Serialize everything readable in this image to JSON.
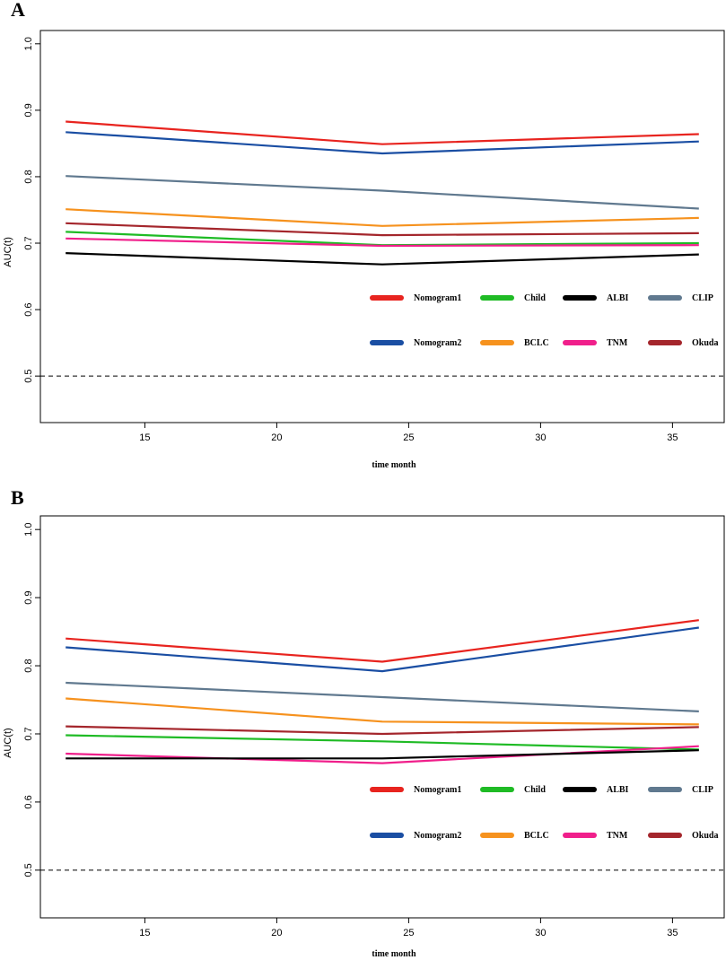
{
  "chart_data": [
    {
      "panel_label": "A",
      "type": "line",
      "xlabel": "time month",
      "ylabel": "AUC(t)",
      "xlim": [
        12,
        36
      ],
      "ylim": [
        0.43,
        1.02
      ],
      "x_ticks": [
        15,
        20,
        25,
        30,
        35
      ],
      "y_ticks": [
        0.5,
        0.6,
        0.7,
        0.8,
        0.9,
        1.0
      ],
      "y_tick_labels": [
        "0.5",
        "0.6",
        "0.7",
        "0.8",
        "0.9",
        "1.0"
      ],
      "reference_line": 0.5,
      "x": [
        12,
        24,
        36
      ],
      "series": [
        {
          "name": "Nomogram1",
          "color": "#e8241f",
          "values": [
            0.883,
            0.849,
            0.864
          ]
        },
        {
          "name": "Nomogram2",
          "color": "#1a4ea3",
          "values": [
            0.867,
            0.835,
            0.853
          ]
        },
        {
          "name": "CLIP",
          "color": "#60798f",
          "values": [
            0.801,
            0.779,
            0.752
          ]
        },
        {
          "name": "BCLC",
          "color": "#f6921e",
          "values": [
            0.751,
            0.726,
            0.738
          ]
        },
        {
          "name": "Okuda",
          "color": "#a4262c",
          "values": [
            0.73,
            0.712,
            0.715
          ]
        },
        {
          "name": "Child",
          "color": "#1fbb25",
          "values": [
            0.717,
            0.697,
            0.7
          ]
        },
        {
          "name": "TNM",
          "color": "#f01f8b",
          "values": [
            0.707,
            0.696,
            0.697
          ]
        },
        {
          "name": "ALBI",
          "color": "#000000",
          "values": [
            0.685,
            0.668,
            0.683
          ]
        }
      ],
      "legend": [
        [
          "Nomogram1",
          "Child",
          "ALBI",
          "CLIP"
        ],
        [
          "Nomogram2",
          "BCLC",
          "TNM",
          "Okuda"
        ]
      ]
    },
    {
      "panel_label": "B",
      "type": "line",
      "xlabel": "time month",
      "ylabel": "AUC(t)",
      "xlim": [
        12,
        36
      ],
      "ylim": [
        0.43,
        1.02
      ],
      "x_ticks": [
        15,
        20,
        25,
        30,
        35
      ],
      "y_ticks": [
        0.5,
        0.6,
        0.7,
        0.8,
        0.9,
        1.0
      ],
      "y_tick_labels": [
        "0.5",
        "0.6",
        "0.7",
        "0.8",
        "0.9",
        "1.0"
      ],
      "reference_line": 0.5,
      "x": [
        12,
        24,
        36
      ],
      "series": [
        {
          "name": "Nomogram1",
          "color": "#e8241f",
          "values": [
            0.84,
            0.806,
            0.867
          ]
        },
        {
          "name": "Nomogram2",
          "color": "#1a4ea3",
          "values": [
            0.827,
            0.792,
            0.856
          ]
        },
        {
          "name": "CLIP",
          "color": "#60798f",
          "values": [
            0.775,
            0.754,
            0.733
          ]
        },
        {
          "name": "BCLC",
          "color": "#f6921e",
          "values": [
            0.752,
            0.718,
            0.714
          ]
        },
        {
          "name": "Okuda",
          "color": "#a4262c",
          "values": [
            0.711,
            0.7,
            0.71
          ]
        },
        {
          "name": "Child",
          "color": "#1fbb25",
          "values": [
            0.698,
            0.689,
            0.677
          ]
        },
        {
          "name": "TNM",
          "color": "#f01f8b",
          "values": [
            0.671,
            0.657,
            0.682
          ]
        },
        {
          "name": "ALBI",
          "color": "#000000",
          "values": [
            0.664,
            0.664,
            0.676
          ]
        }
      ],
      "legend": [
        [
          "Nomogram1",
          "Child",
          "ALBI",
          "CLIP"
        ],
        [
          "Nomogram2",
          "BCLC",
          "TNM",
          "Okuda"
        ]
      ]
    }
  ]
}
